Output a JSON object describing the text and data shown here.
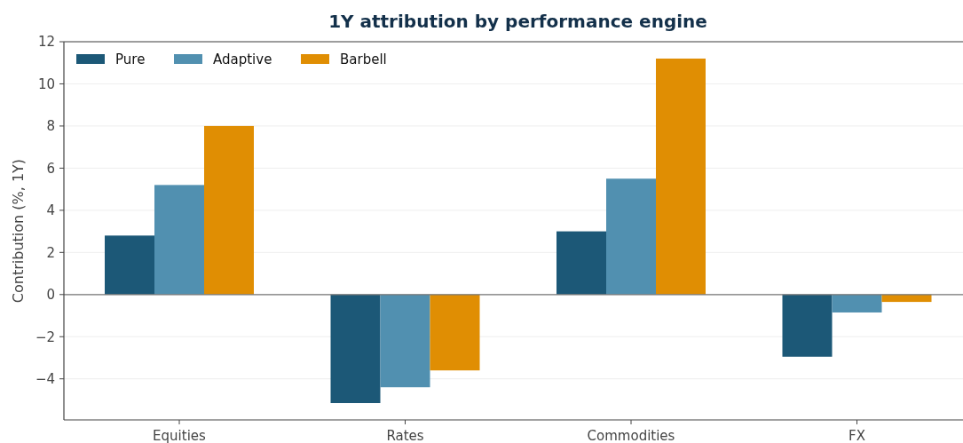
{
  "chart_data": {
    "type": "bar",
    "title": "1Y attribution by performance engine",
    "ylabel": "Contribution (%, 1Y)",
    "categories": [
      "Equities",
      "Rates",
      "Commodities",
      "FX"
    ],
    "series": [
      {
        "name": "Pure",
        "color": "#1c5877",
        "values": [
          2.8,
          -5.15,
          3.0,
          -2.95
        ]
      },
      {
        "name": "Adaptive",
        "color": "#5190b0",
        "values": [
          5.2,
          -4.4,
          5.5,
          -0.85
        ]
      },
      {
        "name": "Barbell",
        "color": "#e08e03",
        "values": [
          8.0,
          -3.6,
          11.2,
          -0.35
        ]
      }
    ],
    "ylim": [
      -5.95,
      12
    ],
    "yticks": [
      {
        "value": -4,
        "label": "−4"
      },
      {
        "value": -2,
        "label": "−2"
      },
      0,
      2,
      4,
      6,
      8,
      10,
      12
    ],
    "grid": "y",
    "legend": "top left",
    "ref_lines": [
      {
        "axis": "y",
        "value": 0,
        "color": "#777777"
      }
    ]
  }
}
